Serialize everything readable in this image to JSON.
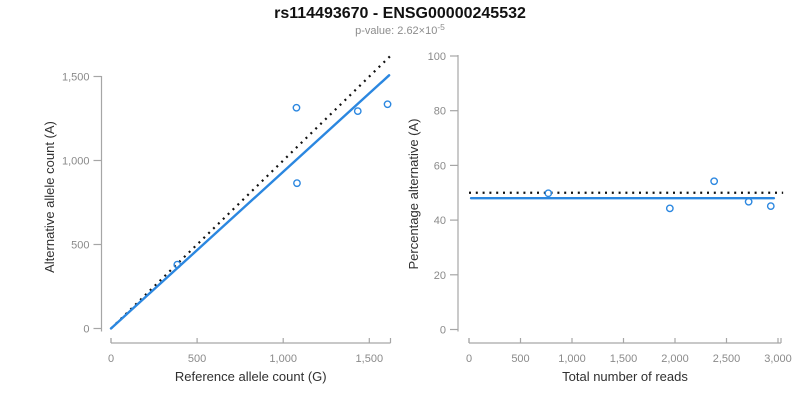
{
  "header": {
    "title": "rs114493670 - ENSG00000245532",
    "pvalue_prefix": "p-value: 2.62×10",
    "pvalue_exponent": "-5"
  },
  "colors": {
    "accent_blue": "#2b87e0",
    "dotted_black": "#111111",
    "axis_gray": "#a6a6a6",
    "tick_label_gray": "#8a8a8a",
    "axis_title_dark": "#303030",
    "subtitle_gray": "#8c8c8c",
    "title_dark": "#111111"
  },
  "chart_data": [
    {
      "id": "allele-counts",
      "type": "scatter",
      "xlabel": "Reference allele count (G)",
      "ylabel": "Alternative allele count (A)",
      "xlim": [
        0,
        1630
      ],
      "ylim": [
        0,
        1625
      ],
      "grid": false,
      "xticks": {
        "values": [
          0,
          500,
          1000,
          1500
        ],
        "labels": [
          "0",
          "500",
          "1,000",
          "1,500"
        ]
      },
      "yticks": {
        "values": [
          0,
          500,
          1000,
          1500
        ],
        "labels": [
          "0",
          "500",
          "1,000",
          "1,500"
        ]
      },
      "points": [
        {
          "x": 385,
          "y": 380
        },
        {
          "x": 1077,
          "y": 1314
        },
        {
          "x": 1080,
          "y": 865
        },
        {
          "x": 1433,
          "y": 1294
        },
        {
          "x": 1606,
          "y": 1335
        }
      ],
      "lines": [
        {
          "name": "expected-50-50-line",
          "style": "dotted",
          "from": [
            0,
            0
          ],
          "to": [
            1620,
            1620
          ]
        },
        {
          "name": "fitted-line",
          "style": "solid",
          "from": [
            0,
            0
          ],
          "to": [
            1615,
            1507
          ]
        }
      ]
    },
    {
      "id": "percentage-vs-reads",
      "type": "scatter",
      "xlabel": "Total number of reads",
      "ylabel": "Percentage alternative (A)",
      "xlim": [
        0,
        3050
      ],
      "ylim": [
        0,
        100
      ],
      "grid": false,
      "xticks": {
        "values": [
          0,
          500,
          1000,
          1500,
          2000,
          2500,
          3000
        ],
        "labels": [
          "0",
          "500",
          "1,000",
          "1,500",
          "2,000",
          "2,500",
          "3,000"
        ]
      },
      "yticks": {
        "values": [
          0,
          20,
          40,
          60,
          80,
          100
        ],
        "labels": [
          "0",
          "20",
          "40",
          "60",
          "80",
          "100"
        ]
      },
      "points": [
        {
          "x": 770,
          "y": 49.8
        },
        {
          "x": 1950,
          "y": 44.3
        },
        {
          "x": 2380,
          "y": 54.2
        },
        {
          "x": 2715,
          "y": 46.7
        },
        {
          "x": 2930,
          "y": 45.1
        }
      ],
      "lines": [
        {
          "name": "expected-50-line",
          "style": "dotted",
          "from": [
            0,
            50
          ],
          "to": [
            3050,
            50
          ]
        },
        {
          "name": "fitted-line",
          "style": "solid",
          "from": [
            20,
            48
          ],
          "to": [
            2960,
            48
          ]
        }
      ]
    }
  ]
}
